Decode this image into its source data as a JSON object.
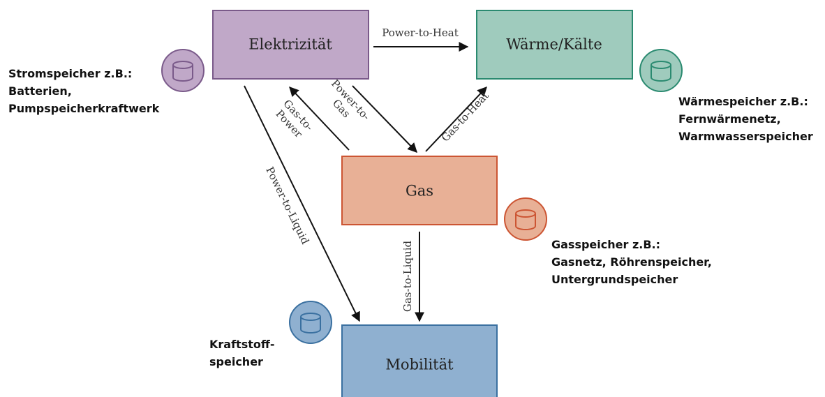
{
  "nodes": [
    {
      "label": "Elektrizität"
    },
    {
      "label": "Wärme/Kälte"
    },
    {
      "label": "Gas"
    },
    {
      "label": "Mobilität"
    }
  ],
  "edges": [
    {
      "label": [
        "Power-to-Heat"
      ]
    },
    {
      "label": [
        "Gas-to-",
        "Power"
      ]
    },
    {
      "label": [
        "Power-to-",
        "Gas"
      ]
    },
    {
      "label": [
        "Gas-to-Heat"
      ]
    },
    {
      "label": [
        "Power-to-Liquid"
      ]
    },
    {
      "label": [
        "Gas-to-Liquid"
      ]
    }
  ],
  "storage": [
    {
      "lines": [
        "Stromspeicher z.B.:",
        "Batterien,",
        "Pumpspeicherkraftwerk"
      ]
    },
    {
      "lines": [
        "Wärmespeicher z.B.:",
        "Fernwärmenetz,",
        "Warmwasserspeicher"
      ]
    },
    {
      "lines": [
        "Gasspeicher z.B.:",
        "Gasnetz, Röhrenspeicher,",
        "Untergrundspeicher"
      ]
    },
    {
      "lines": [
        "Kraftstoff-",
        "speicher"
      ]
    }
  ]
}
